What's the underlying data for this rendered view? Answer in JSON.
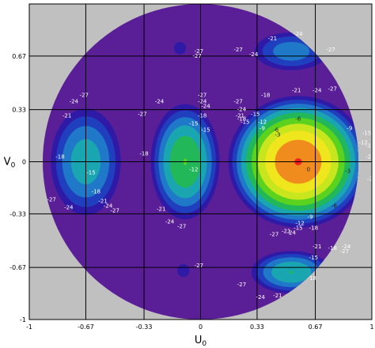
{
  "chart_data": {
    "type": "heatmap",
    "title": "",
    "xlabel": "U",
    "xlabel_sub": "0",
    "ylabel": "V",
    "ylabel_sub": "0",
    "xlim": [
      -1,
      1
    ],
    "ylim": [
      -1,
      1
    ],
    "x_ticks": [
      {
        "value": -1,
        "label": "-1"
      },
      {
        "value": -0.67,
        "label": "-0.67"
      },
      {
        "value": -0.33,
        "label": "-0.33"
      },
      {
        "value": 0,
        "label": "0"
      },
      {
        "value": 0.33,
        "label": "0.33"
      },
      {
        "value": 0.67,
        "label": "0.67"
      },
      {
        "value": 1,
        "label": "1"
      }
    ],
    "y_ticks": [
      {
        "value": 0.67,
        "label": "0.67"
      },
      {
        "value": 0.33,
        "label": "0.33"
      },
      {
        "value": 0,
        "label": "0"
      },
      {
        "value": -0.33,
        "label": "-0.33"
      },
      {
        "value": -0.67,
        "label": "-0.67"
      },
      {
        "value": -1,
        "label": "-1"
      }
    ],
    "grid": true,
    "domain": "unit-circle",
    "levels": [
      -27,
      -24,
      -21,
      -18,
      -15,
      -12,
      -9,
      -6,
      -3,
      0
    ],
    "colors": {
      "outside": "#c0c0c0",
      "floor": "#5a1e96",
      "l-27": "#2f1aa8",
      "l-24": "#1f3fbf",
      "l-21": "#1f78c8",
      "l-18": "#1aa6b0",
      "l-15": "#22b85a",
      "l-12": "#5ad21e",
      "l-9": "#c8e61e",
      "l-6": "#f0e61e",
      "l-3": "#f08c1e",
      "l0": "#f01e1e"
    },
    "lobes": [
      {
        "cx": 0.57,
        "cy": 0.0,
        "rx": 0.43,
        "ry": 0.44,
        "peak": 0
      },
      {
        "cx": -0.67,
        "cy": 0.0,
        "rx": 0.23,
        "ry": 0.38,
        "peak": -16
      },
      {
        "cx": -0.09,
        "cy": 0.0,
        "rx": 0.22,
        "ry": 0.4,
        "peak": -12
      },
      {
        "cx": 0.53,
        "cy": 0.7,
        "rx": 0.25,
        "ry": 0.14,
        "peak": -19
      },
      {
        "cx": 0.53,
        "cy": -0.7,
        "rx": 0.26,
        "ry": 0.15,
        "peak": -15
      },
      {
        "cx": -0.12,
        "cy": 0.72,
        "rx": 0.07,
        "ry": 0.08,
        "peak": -26
      },
      {
        "cx": -0.1,
        "cy": -0.69,
        "rx": 0.07,
        "ry": 0.08,
        "peak": -26
      },
      {
        "cx": -0.96,
        "cy": 0.0,
        "rx": 0.03,
        "ry": 0.1,
        "peak": -27
      }
    ],
    "contour_labels": [
      {
        "x": -0.68,
        "y": 0.41,
        "text": "-27"
      },
      {
        "x": -0.74,
        "y": 0.37,
        "text": "-24"
      },
      {
        "x": -0.78,
        "y": 0.28,
        "text": "-21"
      },
      {
        "x": -0.82,
        "y": 0.02,
        "text": "-18"
      },
      {
        "x": -1.03,
        "y": -0.12,
        "text": "-27"
      },
      {
        "x": -0.64,
        "y": -0.08,
        "text": "-15"
      },
      {
        "x": -0.61,
        "y": -0.2,
        "text": "-18"
      },
      {
        "x": -0.87,
        "y": -0.25,
        "text": "-27"
      },
      {
        "x": -0.77,
        "y": -0.3,
        "text": "-24"
      },
      {
        "x": -0.57,
        "y": -0.26,
        "text": "-21"
      },
      {
        "x": -0.54,
        "y": -0.29,
        "text": "-24"
      },
      {
        "x": -0.5,
        "y": -0.32,
        "text": "-27"
      },
      {
        "x": -0.34,
        "y": 0.29,
        "text": "-27"
      },
      {
        "x": -0.24,
        "y": 0.37,
        "text": "-24"
      },
      {
        "x": -0.33,
        "y": 0.04,
        "text": "-18"
      },
      {
        "x": -0.23,
        "y": -0.31,
        "text": "-21"
      },
      {
        "x": -0.18,
        "y": -0.39,
        "text": "-24"
      },
      {
        "x": -0.11,
        "y": -0.42,
        "text": "-27"
      },
      {
        "x": -0.04,
        "y": -0.06,
        "text": "-12"
      },
      {
        "x": -0.04,
        "y": 0.23,
        "text": "-15"
      },
      {
        "x": 0.01,
        "y": 0.28,
        "text": "-18"
      },
      {
        "x": 0.01,
        "y": 0.37,
        "text": "-24"
      },
      {
        "x": 0.01,
        "y": 0.41,
        "text": "-27"
      },
      {
        "x": 0.03,
        "y": 0.19,
        "text": "-15"
      },
      {
        "x": 0.03,
        "y": 0.34,
        "text": "-24"
      },
      {
        "x": -0.02,
        "y": 0.66,
        "text": "-27"
      },
      {
        "x": -0.01,
        "y": 0.69,
        "text": "-27"
      },
      {
        "x": -0.01,
        "y": -0.67,
        "text": "-27"
      },
      {
        "x": 0.57,
        "y": 0.8,
        "text": "-24"
      },
      {
        "x": 0.42,
        "y": 0.77,
        "text": "-21"
      },
      {
        "x": 0.22,
        "y": 0.7,
        "text": "-27"
      },
      {
        "x": 0.31,
        "y": 0.67,
        "text": "-24"
      },
      {
        "x": 0.76,
        "y": 0.7,
        "text": "-27"
      },
      {
        "x": 0.22,
        "y": 0.37,
        "text": "-27"
      },
      {
        "x": 0.24,
        "y": 0.32,
        "text": "-24"
      },
      {
        "x": 0.23,
        "y": 0.28,
        "text": "-21"
      },
      {
        "x": 0.24,
        "y": 0.26,
        "text": "-18"
      },
      {
        "x": 0.26,
        "y": 0.24,
        "text": "-15"
      },
      {
        "x": 0.32,
        "y": 0.29,
        "text": "-15"
      },
      {
        "x": 0.36,
        "y": 0.24,
        "text": "-12"
      },
      {
        "x": 0.36,
        "y": 0.2,
        "text": "-9"
      },
      {
        "x": 0.44,
        "y": 0.19,
        "text": "-6"
      },
      {
        "x": 0.38,
        "y": 0.41,
        "text": "-18"
      },
      {
        "x": 0.56,
        "y": 0.44,
        "text": "-21"
      },
      {
        "x": 0.68,
        "y": 0.44,
        "text": "-24"
      },
      {
        "x": 0.77,
        "y": 0.45,
        "text": "-27"
      },
      {
        "x": 0.57,
        "y": 0.26,
        "text": "-6"
      },
      {
        "x": 0.45,
        "y": 0.16,
        "text": "-3"
      },
      {
        "x": 0.87,
        "y": 0.2,
        "text": "-9"
      },
      {
        "x": 0.97,
        "y": 0.17,
        "text": "-15"
      },
      {
        "x": 0.95,
        "y": 0.11,
        "text": "-12"
      },
      {
        "x": 0.99,
        "y": 0.09,
        "text": "-18"
      },
      {
        "x": 0.99,
        "y": 0.02,
        "text": "-21"
      },
      {
        "x": 0.86,
        "y": -0.07,
        "text": "-3"
      },
      {
        "x": 0.63,
        "y": -0.06,
        "text": "0"
      },
      {
        "x": 1.0,
        "y": -0.12,
        "text": "-24"
      },
      {
        "x": 0.78,
        "y": -0.29,
        "text": "-6"
      },
      {
        "x": 0.64,
        "y": -0.36,
        "text": "-9"
      },
      {
        "x": 0.58,
        "y": -0.4,
        "text": "-12"
      },
      {
        "x": 0.57,
        "y": -0.43,
        "text": "-15"
      },
      {
        "x": 0.66,
        "y": -0.43,
        "text": "-18"
      },
      {
        "x": 0.5,
        "y": -0.45,
        "text": "-21"
      },
      {
        "x": 0.53,
        "y": -0.46,
        "text": "-24"
      },
      {
        "x": 0.43,
        "y": -0.47,
        "text": "-27"
      },
      {
        "x": 0.68,
        "y": -0.55,
        "text": "-21"
      },
      {
        "x": 0.77,
        "y": -0.56,
        "text": "-18"
      },
      {
        "x": 0.85,
        "y": -0.55,
        "text": "-24"
      },
      {
        "x": 0.84,
        "y": -0.58,
        "text": "-27"
      },
      {
        "x": 0.66,
        "y": -0.62,
        "text": "-15"
      },
      {
        "x": 0.65,
        "y": -0.75,
        "text": "-18"
      },
      {
        "x": 0.24,
        "y": -0.79,
        "text": "-27"
      },
      {
        "x": 0.35,
        "y": -0.87,
        "text": "-24"
      },
      {
        "x": 0.45,
        "y": -0.86,
        "text": "-21"
      }
    ]
  }
}
